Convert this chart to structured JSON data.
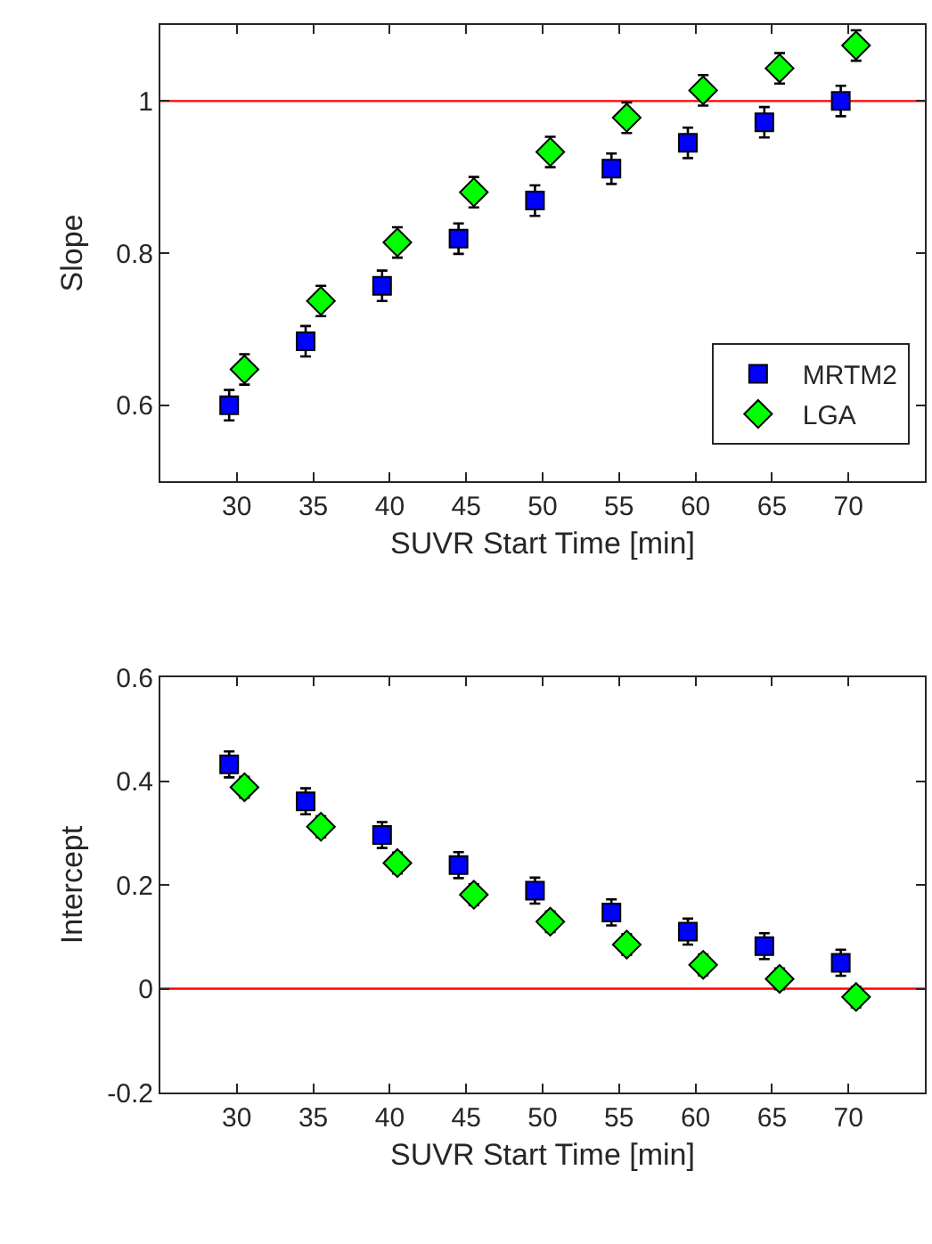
{
  "chart_data": [
    {
      "type": "scatter",
      "xlabel": "SUVR Start Time [min]",
      "ylabel": "Slope",
      "xlim": [
        25,
        75
      ],
      "xticks": [
        30,
        35,
        40,
        45,
        50,
        55,
        60,
        65,
        70
      ],
      "ylim": [
        0.5,
        1.1
      ],
      "yticks": [
        0.6,
        0.8,
        1
      ],
      "grid": false,
      "legend": "bottom right",
      "ref_lines": [
        {
          "axis": "y",
          "value": 1,
          "color": "#ff0000"
        }
      ],
      "series": [
        {
          "name": "MRTM2",
          "color": "#0000ff",
          "marker": "square",
          "x": [
            29.5,
            34.5,
            39.5,
            44.5,
            49.5,
            54.5,
            59.5,
            64.5,
            69.5
          ],
          "values": [
            0.6,
            0.684,
            0.757,
            0.819,
            0.869,
            0.911,
            0.945,
            0.972,
            1.0
          ],
          "errors": [
            0.02,
            0.02,
            0.02,
            0.02,
            0.02,
            0.02,
            0.02,
            0.02,
            0.02
          ]
        },
        {
          "name": "LGA",
          "color": "#00ff00",
          "marker": "diamond",
          "x": [
            30.5,
            35.5,
            40.5,
            45.5,
            50.5,
            55.5,
            60.5,
            65.5,
            70.5
          ],
          "values": [
            0.647,
            0.737,
            0.814,
            0.88,
            0.933,
            0.978,
            1.014,
            1.043,
            1.073
          ],
          "errors": [
            0.02,
            0.02,
            0.02,
            0.02,
            0.02,
            0.02,
            0.02,
            0.02,
            0.02
          ]
        }
      ]
    },
    {
      "type": "scatter",
      "xlabel": "SUVR Start Time [min]",
      "ylabel": "Intercept",
      "xlim": [
        25,
        75
      ],
      "xticks": [
        30,
        35,
        40,
        45,
        50,
        55,
        60,
        65,
        70
      ],
      "ylim": [
        -0.2,
        0.6
      ],
      "yticks": [
        -0.2,
        0,
        0.2,
        0.4,
        0.6
      ],
      "grid": false,
      "ref_lines": [
        {
          "axis": "y",
          "value": 0,
          "color": "#ff0000"
        }
      ],
      "series": [
        {
          "color": "#0000ff",
          "marker": "square",
          "x": [
            29.5,
            34.5,
            39.5,
            44.5,
            49.5,
            54.5,
            59.5,
            64.5,
            69.5
          ],
          "values": [
            0.432,
            0.361,
            0.296,
            0.238,
            0.189,
            0.147,
            0.11,
            0.082,
            0.05
          ],
          "errors": [
            0.025,
            0.025,
            0.025,
            0.025,
            0.025,
            0.025,
            0.025,
            0.025,
            0.025
          ]
        },
        {
          "color": "#00ff00",
          "marker": "diamond",
          "x": [
            30.5,
            35.5,
            40.5,
            45.5,
            50.5,
            55.5,
            60.5,
            65.5,
            70.5
          ],
          "values": [
            0.388,
            0.312,
            0.242,
            0.181,
            0.129,
            0.085,
            0.046,
            0.019,
            -0.016
          ],
          "errors": [
            0.02,
            0.02,
            0.02,
            0.02,
            0.02,
            0.02,
            0.02,
            0.02,
            0.02
          ]
        }
      ]
    }
  ]
}
